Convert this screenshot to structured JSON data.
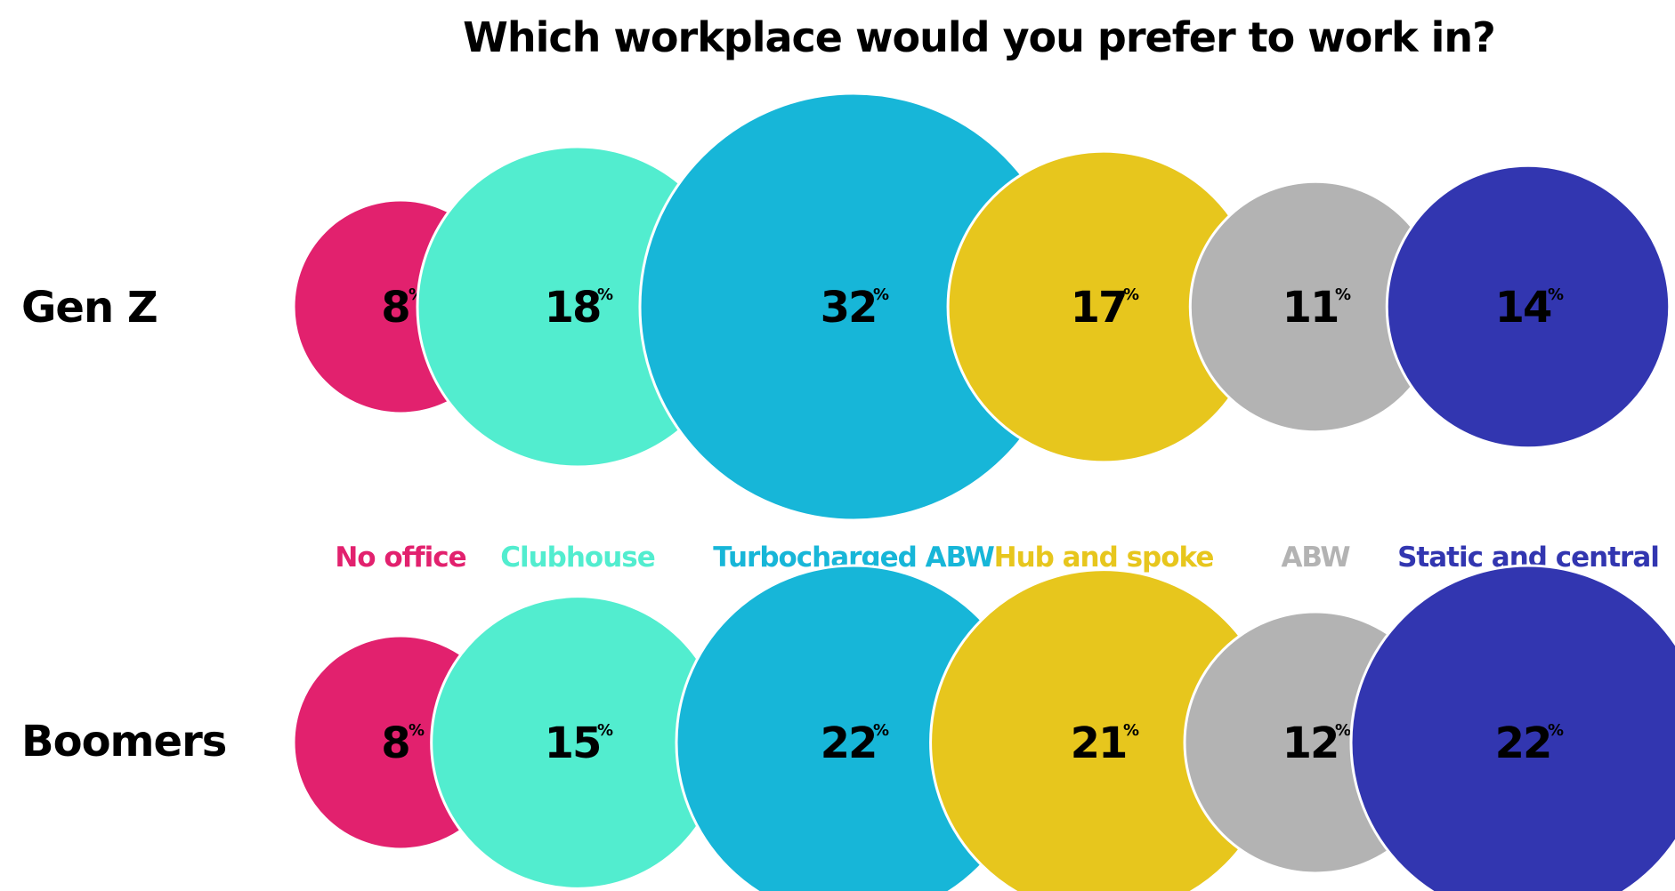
{
  "chart_data": {
    "type": "bubble",
    "title": "Which workplace would you prefer to work in?",
    "unit": "%",
    "categories": [
      {
        "name": "No office",
        "color": "#e2216e"
      },
      {
        "name": "Clubhouse",
        "color": "#52edcf"
      },
      {
        "name": "Turbocharged ABW",
        "color": "#17b6d8"
      },
      {
        "name": "Hub and spoke",
        "color": "#e7c61d"
      },
      {
        "name": "ABW",
        "color": "#b3b3b3"
      },
      {
        "name": "Static and central",
        "color": "#3236b0"
      }
    ],
    "series": [
      {
        "name": "Gen Z",
        "values": [
          8,
          18,
          32,
          17,
          11,
          14
        ]
      },
      {
        "name": "Boomers",
        "values": [
          8,
          15,
          22,
          21,
          12,
          22
        ]
      }
    ]
  }
}
